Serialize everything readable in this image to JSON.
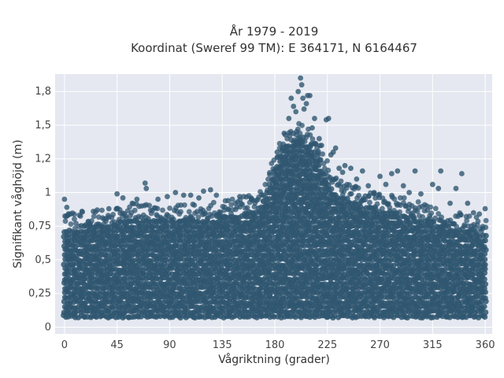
{
  "chart_data": {
    "type": "scatter",
    "title": "År 1979 - 2019",
    "subtitle": "Koordinat (Sweref 99 TM): E 364171, N 6164467",
    "xlabel": "Vågriktning (grader)",
    "ylabel": "Signifikant våghöjd (m)",
    "xlim": [
      -8,
      366
    ],
    "ylim": [
      -0.05,
      1.88
    ],
    "x_ticks": [
      0,
      45,
      90,
      135,
      180,
      225,
      270,
      315,
      360
    ],
    "x_tick_labels": [
      "0",
      "45",
      "90",
      "135",
      "180",
      "225",
      "270",
      "315",
      "360"
    ],
    "y_ticks": [
      0,
      0.25,
      0.5,
      0.75,
      1,
      1.25,
      1.5,
      1.75
    ],
    "y_tick_labels": [
      "0",
      "0,25",
      "0,5",
      "0,75",
      "1",
      "1,2",
      "1,5",
      "1,8"
    ],
    "grid": true,
    "series": [
      {
        "color": "#2f5670",
        "marker": "circle",
        "band": {
          "x_step": 2,
          "x_range": [
            0,
            360
          ],
          "y_min": 0.08,
          "upper_envelope": [
            [
              0,
              0.72
            ],
            [
              30,
              0.76
            ],
            [
              60,
              0.8
            ],
            [
              90,
              0.78
            ],
            [
              120,
              0.8
            ],
            [
              150,
              0.84
            ],
            [
              170,
              0.9
            ],
            [
              185,
              1.3
            ],
            [
              200,
              1.42
            ],
            [
              215,
              1.3
            ],
            [
              230,
              1.0
            ],
            [
              260,
              0.9
            ],
            [
              300,
              0.82
            ],
            [
              330,
              0.74
            ],
            [
              360,
              0.7
            ]
          ]
        },
        "outliers": [
          [
            0,
            0.95
          ],
          [
            2,
            0.89
          ],
          [
            5,
            0.84
          ],
          [
            15,
            0.86
          ],
          [
            28,
            0.87
          ],
          [
            38,
            0.88
          ],
          [
            45,
            0.99
          ],
          [
            50,
            0.96
          ],
          [
            58,
            0.92
          ],
          [
            62,
            0.95
          ],
          [
            69,
            1.07
          ],
          [
            70,
            1.03
          ],
          [
            80,
            0.95
          ],
          [
            88,
            0.97
          ],
          [
            95,
            1.0
          ],
          [
            102,
            0.98
          ],
          [
            108,
            0.98
          ],
          [
            115,
            0.96
          ],
          [
            119,
            1.01
          ],
          [
            125,
            1.02
          ],
          [
            130,
            0.98
          ],
          [
            140,
            0.94
          ],
          [
            150,
            0.97
          ],
          [
            160,
            0.95
          ],
          [
            170,
            0.98
          ],
          [
            175,
            1.06
          ],
          [
            178,
            1.1
          ],
          [
            182,
            1.3
          ],
          [
            185,
            1.19
          ],
          [
            188,
            1.44
          ],
          [
            192,
            1.55
          ],
          [
            194,
            1.7
          ],
          [
            196,
            1.64
          ],
          [
            198,
            1.6
          ],
          [
            200,
            1.75
          ],
          [
            202,
            1.85
          ],
          [
            203,
            1.8
          ],
          [
            204,
            1.7
          ],
          [
            205,
            1.62
          ],
          [
            207,
            1.66
          ],
          [
            208,
            1.72
          ],
          [
            210,
            1.72
          ],
          [
            212,
            1.48
          ],
          [
            214,
            1.55
          ],
          [
            215,
            1.36
          ],
          [
            218,
            1.4
          ],
          [
            220,
            1.35
          ],
          [
            224,
            1.54
          ],
          [
            226,
            1.55
          ],
          [
            228,
            1.28
          ],
          [
            230,
            1.3
          ],
          [
            232,
            1.33
          ],
          [
            235,
            1.18
          ],
          [
            238,
            1.15
          ],
          [
            240,
            1.2
          ],
          [
            245,
            1.18
          ],
          [
            250,
            1.1
          ],
          [
            255,
            1.16
          ],
          [
            260,
            1.05
          ],
          [
            265,
            1.0
          ],
          [
            270,
            1.12
          ],
          [
            275,
            1.06
          ],
          [
            280,
            1.14
          ],
          [
            285,
            1.16
          ],
          [
            290,
            1.05
          ],
          [
            295,
            1.0
          ],
          [
            300,
            1.16
          ],
          [
            305,
            0.99
          ],
          [
            310,
            0.9
          ],
          [
            315,
            1.06
          ],
          [
            320,
            1.03
          ],
          [
            322,
            1.16
          ],
          [
            330,
            0.92
          ],
          [
            335,
            1.03
          ],
          [
            340,
            1.14
          ],
          [
            345,
            0.92
          ],
          [
            350,
            0.85
          ],
          [
            355,
            0.84
          ],
          [
            360,
            0.88
          ]
        ]
      }
    ]
  }
}
